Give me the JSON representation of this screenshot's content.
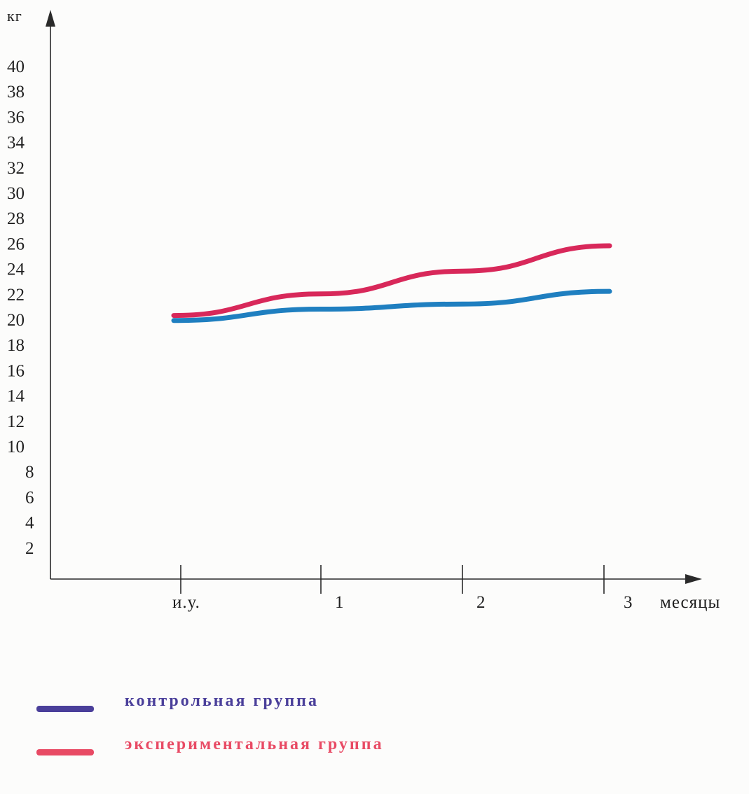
{
  "chart_data": {
    "type": "line",
    "ylabel": "кг",
    "xlabel": "месяцы",
    "categories": [
      "и.у.",
      "1",
      "2",
      "3"
    ],
    "yticks": [
      2,
      4,
      6,
      8,
      10,
      12,
      14,
      16,
      18,
      20,
      22,
      24,
      26,
      28,
      30,
      32,
      34,
      36,
      38,
      40
    ],
    "ylim": [
      0,
      40
    ],
    "grid": false,
    "legend_position": "bottom-left",
    "series": [
      {
        "name": "контрольная группа",
        "color": "#1f7fc0",
        "values": [
          19.9,
          20.8,
          21.2,
          22.2
        ]
      },
      {
        "name": "экспериментальная группа",
        "color": "#d8285a",
        "values": [
          20.3,
          22.0,
          23.8,
          25.8
        ]
      }
    ]
  },
  "legend": {
    "items": [
      {
        "label": "контрольная группа",
        "swatch_color": "#4a3f9a",
        "text_color": "#4a3f9a"
      },
      {
        "label": "экспериментальная группа",
        "swatch_color": "#e84a64",
        "text_color": "#e84a64"
      }
    ]
  }
}
